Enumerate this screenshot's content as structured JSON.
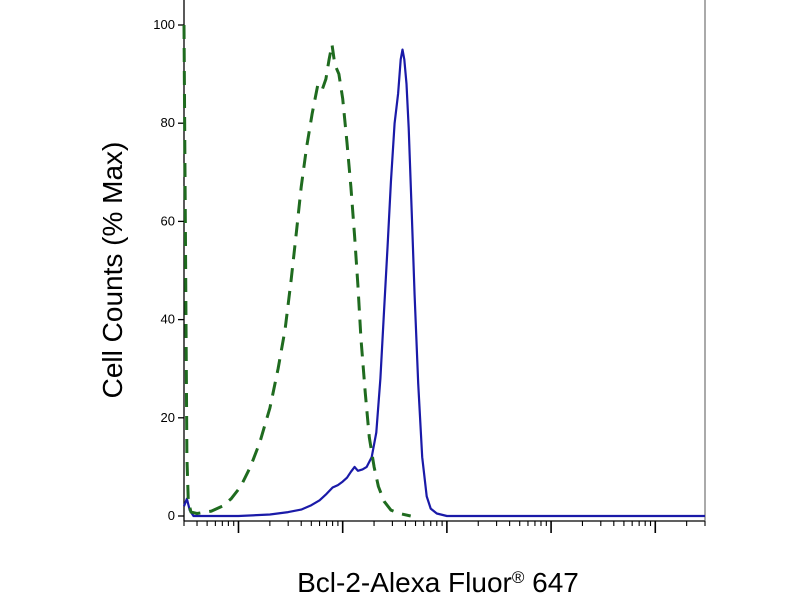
{
  "chart_data": {
    "type": "line",
    "xlabel": "Bcl-2-Alexa Fluor",
    "xlabel_superscript": "®",
    "xlabel_suffix": " 647",
    "ylabel": "Cell Counts (% Max)",
    "xscale": "log",
    "xlim": [
      0.3,
      30000
    ],
    "ylim": [
      0,
      100
    ],
    "yticks": [
      0,
      20,
      40,
      60,
      80,
      100
    ],
    "ytick_labels": [
      "0",
      "20",
      "40",
      "60",
      "80",
      "100"
    ],
    "grid": false,
    "series": [
      {
        "color": "#1a1aa8",
        "style": "solid",
        "points": [
          [
            0.3,
            2
          ],
          [
            0.32,
            3.5
          ],
          [
            0.34,
            1.2
          ],
          [
            0.37,
            0
          ],
          [
            1.0,
            0
          ],
          [
            2.0,
            0.3
          ],
          [
            3.0,
            0.8
          ],
          [
            4.0,
            1.3
          ],
          [
            5.0,
            2.2
          ],
          [
            6.0,
            3.2
          ],
          [
            7.0,
            4.5
          ],
          [
            8.0,
            5.8
          ],
          [
            9.0,
            6.3
          ],
          [
            10.0,
            7
          ],
          [
            11.0,
            7.8
          ],
          [
            12.0,
            9
          ],
          [
            13.0,
            10
          ],
          [
            14.0,
            9.2
          ],
          [
            15.5,
            9.5
          ],
          [
            17.0,
            10
          ],
          [
            19.0,
            12
          ],
          [
            21.0,
            17
          ],
          [
            23.0,
            28
          ],
          [
            25.0,
            42
          ],
          [
            27.0,
            55
          ],
          [
            29.0,
            68
          ],
          [
            31.5,
            80
          ],
          [
            34.0,
            86
          ],
          [
            36.0,
            93
          ],
          [
            37.5,
            95
          ],
          [
            39.0,
            93
          ],
          [
            41.0,
            88
          ],
          [
            43.0,
            79
          ],
          [
            46.0,
            62
          ],
          [
            49.0,
            45
          ],
          [
            53.0,
            27
          ],
          [
            58.0,
            12
          ],
          [
            64.0,
            4
          ],
          [
            70.0,
            1.5
          ],
          [
            80.0,
            0.5
          ],
          [
            100.0,
            0
          ],
          [
            30000,
            0
          ]
        ]
      },
      {
        "color": "#1f6b1f",
        "style": "dashed",
        "points": [
          [
            0.3,
            100
          ],
          [
            0.31,
            55
          ],
          [
            0.32,
            12
          ],
          [
            0.33,
            3
          ],
          [
            0.35,
            0.8
          ],
          [
            0.4,
            0.5
          ],
          [
            0.55,
            1
          ],
          [
            0.7,
            2
          ],
          [
            0.85,
            3.5
          ],
          [
            1.05,
            6
          ],
          [
            1.3,
            10
          ],
          [
            1.6,
            15
          ],
          [
            2.0,
            22
          ],
          [
            2.4,
            30
          ],
          [
            2.8,
            38
          ],
          [
            3.2,
            48
          ],
          [
            3.6,
            58
          ],
          [
            4.0,
            67
          ],
          [
            4.5,
            75
          ],
          [
            5.1,
            82
          ],
          [
            5.8,
            88
          ],
          [
            6.4,
            87
          ],
          [
            6.9,
            89
          ],
          [
            7.4,
            93
          ],
          [
            7.9,
            96
          ],
          [
            8.4,
            92
          ],
          [
            9.2,
            90
          ],
          [
            10.0,
            85
          ],
          [
            11.0,
            76
          ],
          [
            12.0,
            67
          ],
          [
            13.0,
            57
          ],
          [
            14.0,
            47
          ],
          [
            15.0,
            36
          ],
          [
            16.5,
            25
          ],
          [
            18.0,
            16
          ],
          [
            20.0,
            10
          ],
          [
            22.0,
            6
          ],
          [
            25.0,
            3
          ],
          [
            29.0,
            1.2
          ],
          [
            35.0,
            0.5
          ],
          [
            45.0,
            0
          ]
        ]
      }
    ]
  },
  "colors": {
    "axis": "#000000",
    "frame": "#555555"
  }
}
